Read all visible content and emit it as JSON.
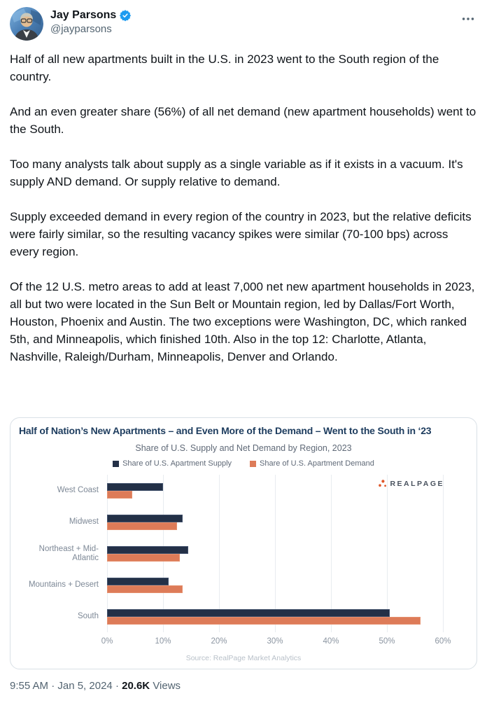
{
  "header": {
    "display_name": "Jay Parsons",
    "handle": "@jayparsons"
  },
  "tweet": {
    "paragraphs": [
      "Half of all new apartments built in the U.S. in 2023 went to the South region of the country.",
      "And an even greater share (56%) of all net demand (new apartment households) went to the South.",
      "Too many analysts talk about supply as a single variable as if it exists in a vacuum. It's supply AND demand. Or supply relative to demand.",
      "Supply exceeded demand in every region of the country in 2023, but the relative deficits were fairly similar, so the resulting vacancy spikes were similar (70-100 bps) across every region.",
      "Of the 12 U.S. metro areas to add at least 7,000 net new apartment households in 2023, all but two were located in the Sun Belt or Mountain region, led by Dallas/Fort Worth, Houston, Phoenix and Austin. The two exceptions were Washington, DC, which ranked 5th, and Minneapolis, which finished 10th. Also in the top 12: Charlotte, Atlanta, Nashville, Raleigh/Durham, Minneapolis, Denver and Orlando."
    ]
  },
  "chart_data": {
    "type": "bar",
    "orientation": "horizontal",
    "title": "Half of Nation’s New Apartments – and Even More of the Demand – Went to the South in ‘23",
    "subtitle": "Share of U.S. Supply and Net Demand by Region, 2023",
    "categories": [
      "West Coast",
      "Midwest",
      "Northeast + Mid-Atlantic",
      "Mountains + Desert",
      "South"
    ],
    "series": [
      {
        "name": "Share of U.S. Apartment Supply",
        "color": "#233047",
        "values": [
          10,
          13.5,
          14.5,
          11,
          50.5
        ]
      },
      {
        "name": "Share of U.S. Apartment Demand",
        "color": "#dd7b58",
        "values": [
          4.5,
          12.5,
          13,
          13.5,
          56
        ]
      }
    ],
    "x_ticks": [
      "0%",
      "10%",
      "20%",
      "30%",
      "40%",
      "50%",
      "60%"
    ],
    "xlim": [
      0,
      60
    ],
    "grid": "vertical",
    "legend_position": "top",
    "source": "Source: RealPage Market Analytics",
    "logo": "REALPAGE"
  },
  "colors": {
    "supply_navy": "#233047",
    "demand_orange": "#dd7b58",
    "title_navy": "#1d3c5e",
    "verified_blue": "#1d9bf0",
    "logo_orange": "#e0572a"
  },
  "footer": {
    "timestamp": "9:55 AM · Jan 5, 2024",
    "separator": "·",
    "views_count": "20.6K",
    "views_label": "Views"
  }
}
